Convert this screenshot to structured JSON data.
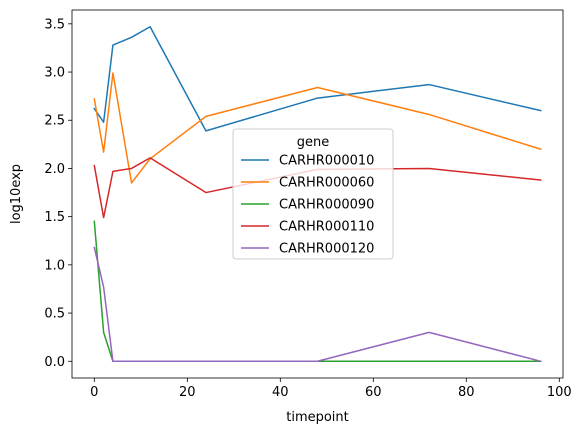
{
  "chart_data": {
    "type": "line",
    "xlabel": "timepoint",
    "ylabel": "log10exp",
    "xlim": [
      -4.8,
      100.8
    ],
    "ylim": [
      -0.1735,
      3.6435
    ],
    "xticks": [
      0,
      20,
      40,
      60,
      80,
      100
    ],
    "yticks": [
      0.0,
      0.5,
      1.0,
      1.5,
      2.0,
      2.5,
      3.0,
      3.5
    ],
    "xtick_labels": [
      "0",
      "20",
      "40",
      "60",
      "80",
      "100"
    ],
    "ytick_labels": [
      "0.0",
      "0.5",
      "1.0",
      "1.5",
      "2.0",
      "2.5",
      "3.0",
      "3.5"
    ],
    "grid": false,
    "legend": {
      "title": "gene",
      "placement": "center-right"
    },
    "series": [
      {
        "name": "CARHR000010",
        "color": "#1f77b4",
        "x": [
          0,
          2,
          4,
          8,
          12,
          24,
          48,
          72,
          96
        ],
        "y": [
          2.62,
          2.48,
          3.28,
          3.36,
          3.47,
          2.39,
          2.73,
          2.87,
          2.6
        ]
      },
      {
        "name": "CARHR000060",
        "color": "#ff7f0e",
        "x": [
          0,
          2,
          4,
          8,
          12,
          24,
          48,
          72,
          96
        ],
        "y": [
          2.72,
          2.17,
          2.99,
          1.85,
          2.1,
          2.54,
          2.84,
          2.56,
          2.2
        ]
      },
      {
        "name": "CARHR000090",
        "color": "#2ca02c",
        "x": [
          0,
          2,
          4,
          8,
          12,
          24,
          48,
          72,
          96
        ],
        "y": [
          1.45,
          0.3,
          0.0,
          0.0,
          0.0,
          0.0,
          0.0,
          0.0,
          0.0
        ]
      },
      {
        "name": "CARHR000110",
        "color": "#d62728",
        "x": [
          0,
          2,
          4,
          8,
          12,
          24,
          48,
          72,
          96
        ],
        "y": [
          2.03,
          1.49,
          1.97,
          2.0,
          2.11,
          1.75,
          1.99,
          2.0,
          1.88
        ]
      },
      {
        "name": "CARHR000120",
        "color": "#9467bd",
        "x": [
          0,
          2,
          4,
          8,
          12,
          24,
          48,
          72,
          96
        ],
        "y": [
          1.18,
          0.77,
          0.0,
          0.0,
          0.0,
          0.0,
          0.0,
          0.3,
          0.0
        ]
      }
    ]
  }
}
